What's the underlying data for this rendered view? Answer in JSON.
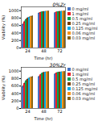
{
  "chart_data": [
    {
      "type": "bar",
      "title": "0%Zr",
      "xlabel": "Time (hr)",
      "ylabel": "Viability (%)",
      "categories": [
        "24",
        "48",
        "72"
      ],
      "series": [
        {
          "name": "0 mg/ml",
          "color": "#4472C4",
          "values": [
            630,
            930,
            940
          ],
          "errors": [
            30,
            15,
            12
          ]
        },
        {
          "name": "1 mg/ml",
          "color": "#ED1C24",
          "values": [
            700,
            950,
            960
          ],
          "errors": [
            28,
            12,
            10
          ]
        },
        {
          "name": "0.5 mg/ml",
          "color": "#00A550",
          "values": [
            760,
            965,
            970
          ],
          "errors": [
            25,
            10,
            9
          ]
        },
        {
          "name": "0.25 mg/ml",
          "color": "#7B3F00",
          "values": [
            800,
            970,
            975
          ],
          "errors": [
            22,
            10,
            9
          ]
        },
        {
          "name": "0.125 mg/ml",
          "color": "#00AEEF",
          "values": [
            820,
            975,
            978
          ],
          "errors": [
            20,
            8,
            8
          ]
        },
        {
          "name": "0.06 mg/ml",
          "color": "#F7941D",
          "values": [
            840,
            980,
            982
          ],
          "errors": [
            18,
            8,
            7
          ]
        },
        {
          "name": "0.03 mg/ml",
          "color": "#8B6513",
          "values": [
            850,
            985,
            988
          ],
          "errors": [
            15,
            7,
            6
          ]
        }
      ],
      "ylim": [
        0,
        1100
      ],
      "yticks": [
        0,
        200,
        400,
        600,
        800,
        1000
      ],
      "grid": false,
      "legend": "right"
    },
    {
      "type": "bar",
      "title": "30%Zr",
      "xlabel": "Time (hr)",
      "ylabel": "Viability (%)",
      "categories": [
        "24",
        "48",
        "72"
      ],
      "series": [
        {
          "name": "0 mg/ml",
          "color": "#4472C4",
          "values": [
            590,
            850,
            920
          ],
          "errors": [
            35,
            20,
            15
          ]
        },
        {
          "name": "1 mg/ml",
          "color": "#ED1C24",
          "values": [
            670,
            900,
            950
          ],
          "errors": [
            30,
            18,
            12
          ]
        },
        {
          "name": "0.5 mg/ml",
          "color": "#00A550",
          "values": [
            740,
            940,
            965
          ],
          "errors": [
            28,
            15,
            10
          ]
        },
        {
          "name": "0.25 mg/ml",
          "color": "#7B3F00",
          "values": [
            780,
            960,
            970
          ],
          "errors": [
            25,
            12,
            10
          ]
        },
        {
          "name": "0.125 mg/ml",
          "color": "#00AEEF",
          "values": [
            810,
            970,
            975
          ],
          "errors": [
            22,
            10,
            8
          ]
        },
        {
          "name": "0.06 mg/ml",
          "color": "#F7941D",
          "values": [
            830,
            975,
            980
          ],
          "errors": [
            20,
            10,
            8
          ]
        },
        {
          "name": "0.03 mg/ml",
          "color": "#8B6513",
          "values": [
            845,
            980,
            985
          ],
          "errors": [
            18,
            8,
            7
          ]
        }
      ],
      "ylim": [
        0,
        1100
      ],
      "yticks": [
        0,
        200,
        400,
        600,
        800,
        1000
      ],
      "grid": false,
      "legend": "right"
    }
  ]
}
